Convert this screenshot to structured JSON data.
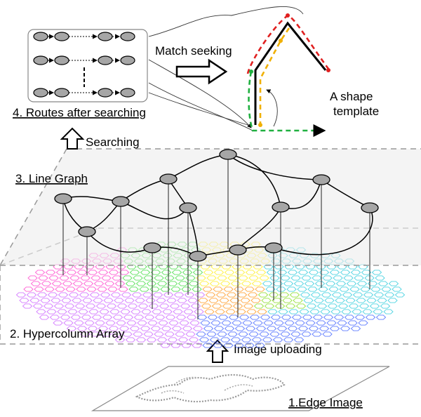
{
  "labels": {
    "routes": "4. Routes after searching",
    "match": "Match seeking",
    "shape_line1": "A shape",
    "shape_line2": "template",
    "searching": "Searching",
    "line_graph": "3. Line Graph",
    "hypercolumn": "2. Hypercolumn Array",
    "uploading": "Image uploading",
    "edge": "1.Edge Image"
  },
  "colors": {
    "node_fill": "#a6a6a6",
    "plane_fill": "#ececec",
    "dash_red": "#e02020",
    "dash_yellow": "#f0b000",
    "dash_green": "#20b040",
    "hex_palette": [
      "#ff44cc",
      "#cc66ff",
      "#44dd44",
      "#ffee22",
      "#ff9922",
      "#33ccdd",
      "#4466ff",
      "#88dd22"
    ]
  }
}
